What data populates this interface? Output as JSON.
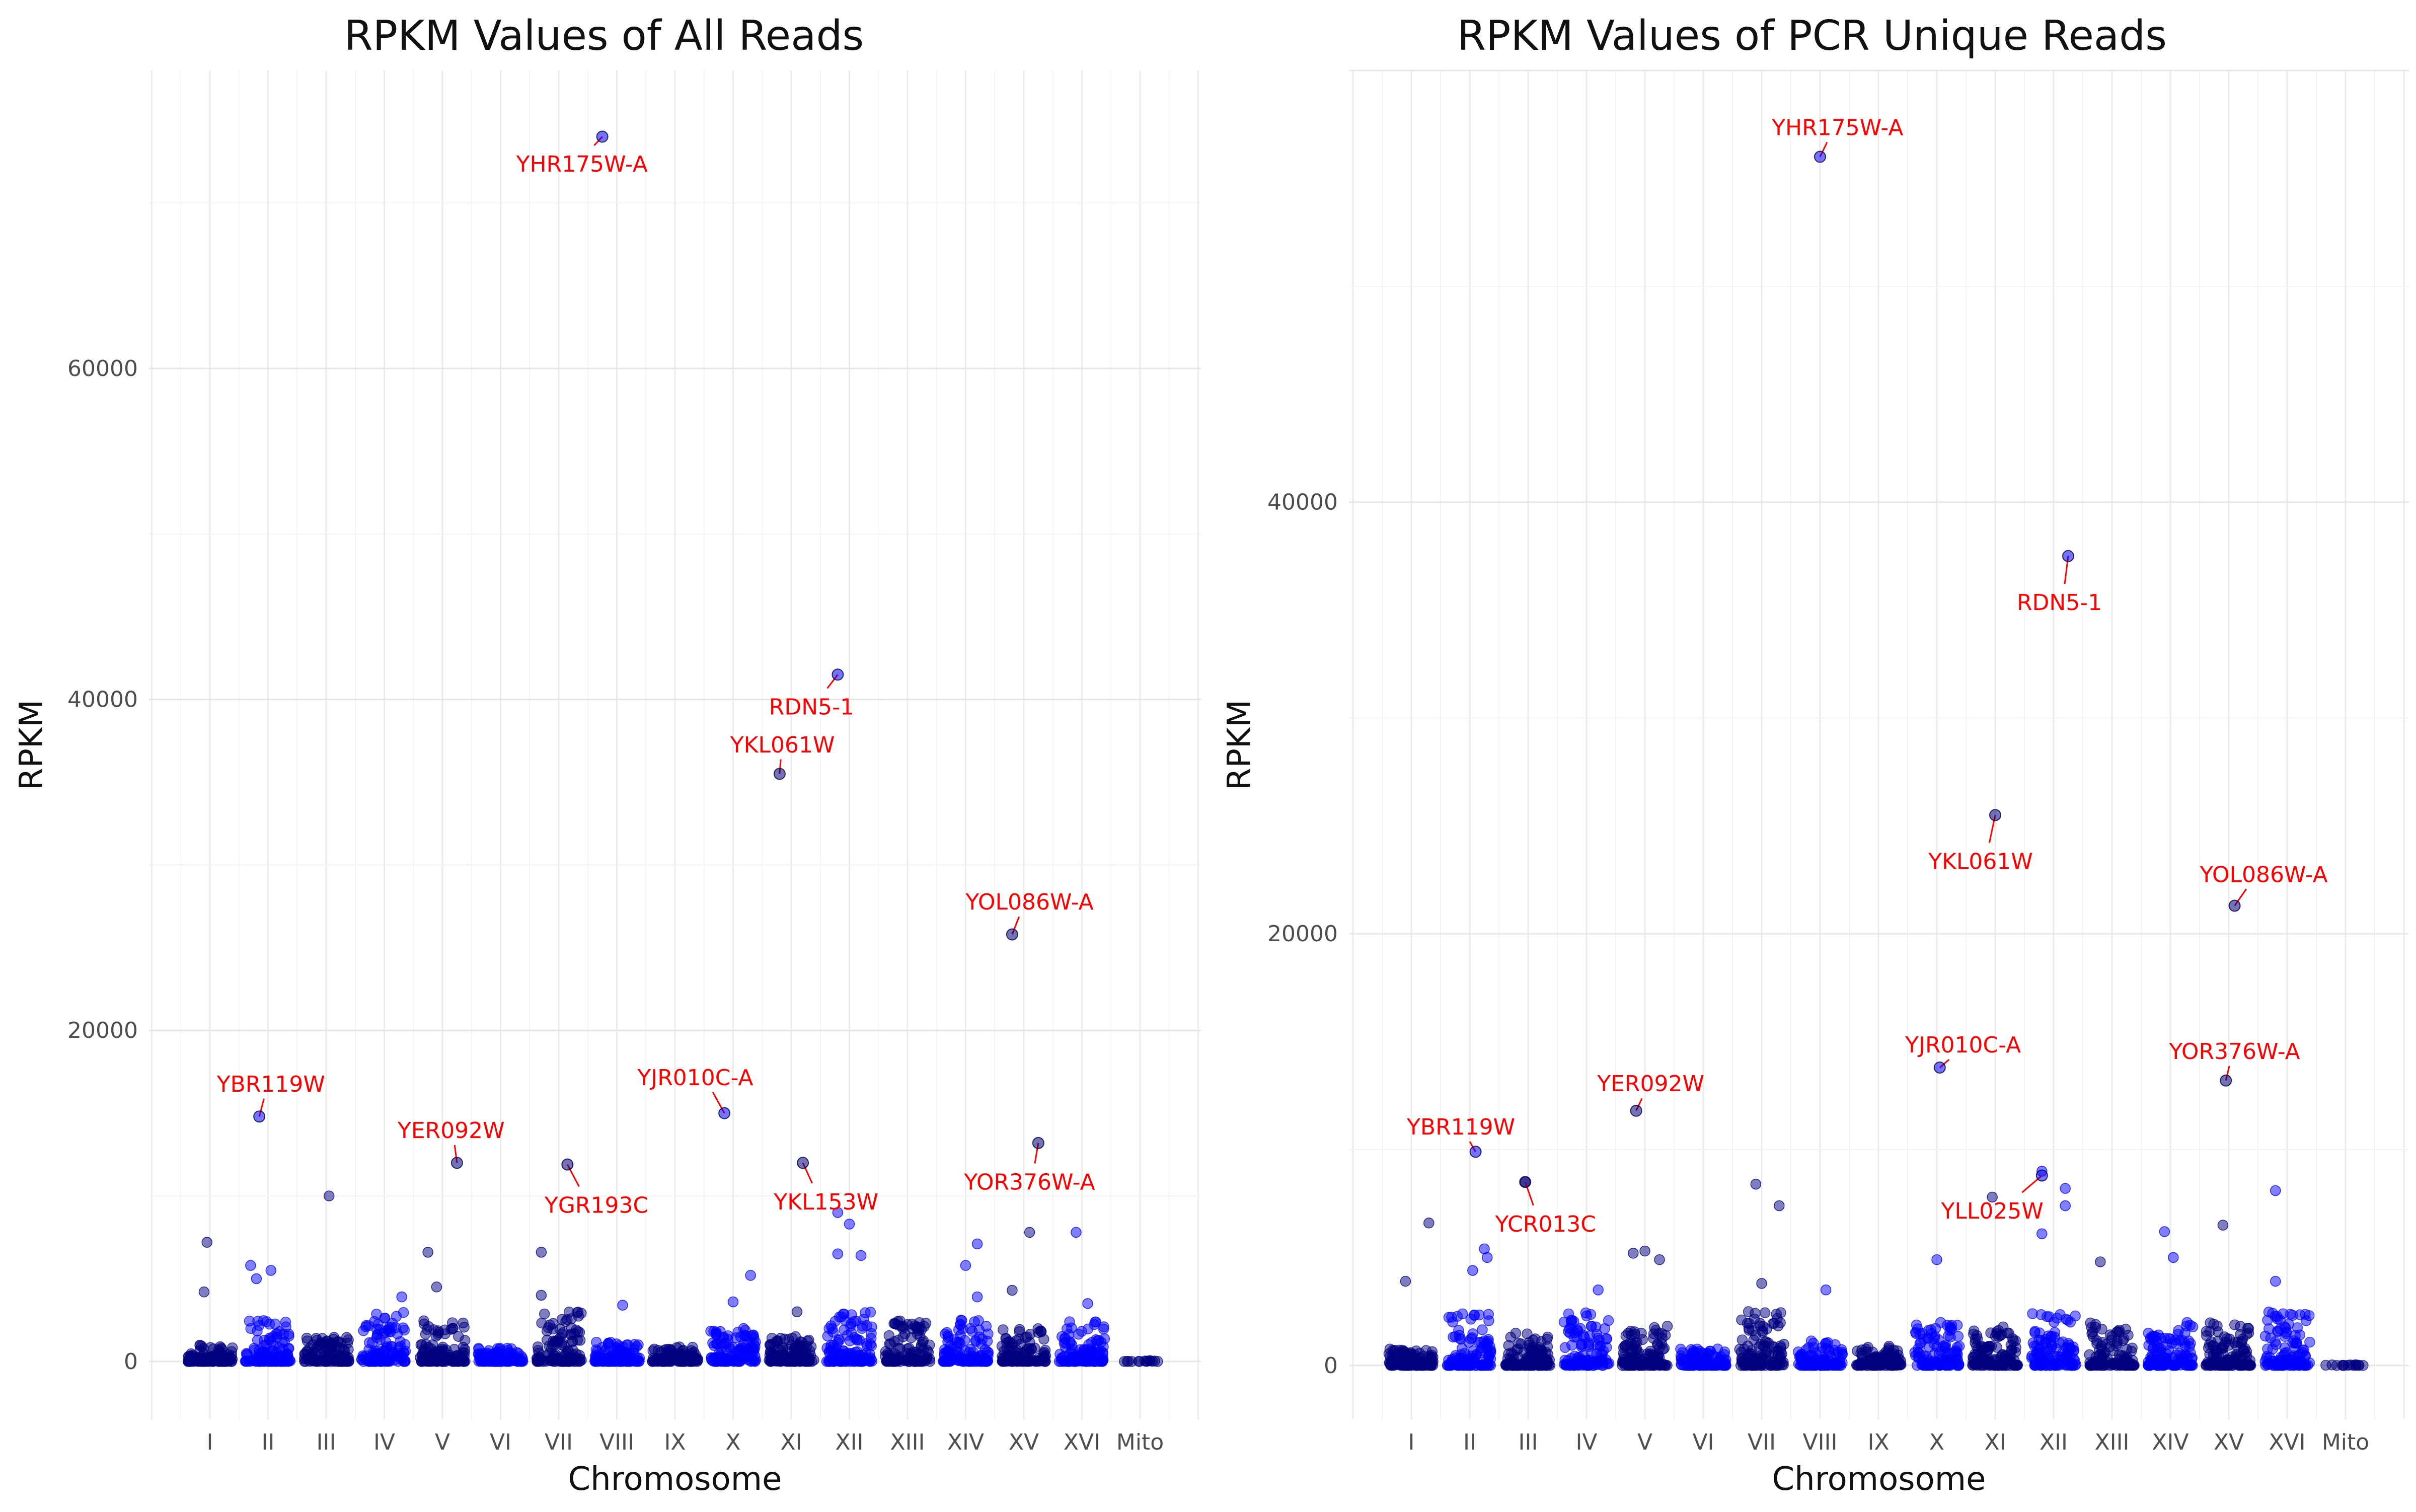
{
  "chart_data": [
    {
      "type": "scatter",
      "title": "RPKM Values of All Reads",
      "xlabel": "Chromosome",
      "ylabel": "RPKM",
      "categories": [
        "I",
        "II",
        "III",
        "IV",
        "V",
        "VI",
        "VII",
        "VIII",
        "IX",
        "X",
        "XI",
        "XII",
        "XIII",
        "XIV",
        "XV",
        "XVI",
        "Mito"
      ],
      "yticks": [
        0,
        20000,
        40000,
        60000
      ],
      "ylim": [
        -3500,
        78000
      ],
      "grid": true,
      "colors": {
        "odd_chromosome": "#000080",
        "even_chromosome": "#0000ff",
        "label": "#ff0000"
      },
      "bulk": [
        {
          "chr": "I",
          "max": 1000
        },
        {
          "chr": "II",
          "max": 2500
        },
        {
          "chr": "III",
          "max": 1500
        },
        {
          "chr": "IV",
          "max": 3000
        },
        {
          "chr": "V",
          "max": 2500
        },
        {
          "chr": "VI",
          "max": 800
        },
        {
          "chr": "VII",
          "max": 3000
        },
        {
          "chr": "VIII",
          "max": 1200
        },
        {
          "chr": "IX",
          "max": 900
        },
        {
          "chr": "X",
          "max": 2000
        },
        {
          "chr": "XI",
          "max": 1500
        },
        {
          "chr": "XII",
          "max": 3000
        },
        {
          "chr": "XIII",
          "max": 2500
        },
        {
          "chr": "XIV",
          "max": 2500
        },
        {
          "chr": "XV",
          "max": 2000
        },
        {
          "chr": "XVI",
          "max": 2500
        },
        {
          "chr": "Mito",
          "max": 50
        }
      ],
      "outliers": [
        {
          "chr": "I",
          "y": 7200,
          "dx": -0.05
        },
        {
          "chr": "I",
          "y": 4200,
          "dx": -0.1
        },
        {
          "chr": "II",
          "y": 5800,
          "dx": -0.3
        },
        {
          "chr": "II",
          "y": 5500,
          "dx": 0.05
        },
        {
          "chr": "II",
          "y": 5000,
          "dx": -0.2
        },
        {
          "chr": "III",
          "y": 10000,
          "dx": 0.05
        },
        {
          "chr": "IV",
          "y": 3900,
          "dx": 0.3
        },
        {
          "chr": "V",
          "y": 6600,
          "dx": -0.25
        },
        {
          "chr": "V",
          "y": 4500,
          "dx": -0.1
        },
        {
          "chr": "VII",
          "y": 6600,
          "dx": -0.3
        },
        {
          "chr": "VII",
          "y": 4000,
          "dx": -0.3
        },
        {
          "chr": "VIII",
          "y": 3400,
          "dx": 0.1
        },
        {
          "chr": "X",
          "y": 5200,
          "dx": 0.3
        },
        {
          "chr": "X",
          "y": 3600,
          "dx": 0
        },
        {
          "chr": "XI",
          "y": 3000,
          "dx": 0.1
        },
        {
          "chr": "XII",
          "y": 9000,
          "dx": -0.2
        },
        {
          "chr": "XII",
          "y": 8300,
          "dx": 0
        },
        {
          "chr": "XII",
          "y": 6500,
          "dx": -0.2
        },
        {
          "chr": "XII",
          "y": 6400,
          "dx": 0.2
        },
        {
          "chr": "XIV",
          "y": 7100,
          "dx": 0.2
        },
        {
          "chr": "XIV",
          "y": 5800,
          "dx": 0
        },
        {
          "chr": "XIV",
          "y": 3900,
          "dx": 0.2
        },
        {
          "chr": "XV",
          "y": 7800,
          "dx": 0.1
        },
        {
          "chr": "XV",
          "y": 4300,
          "dx": -0.2
        },
        {
          "chr": "XVI",
          "y": 7800,
          "dx": -0.1
        },
        {
          "chr": "XVI",
          "y": 3500,
          "dx": 0.1
        }
      ],
      "points": [
        {
          "label": "YHR175W-A",
          "chr": "VIII",
          "dx": -0.25,
          "y": 74000,
          "ly": 72800,
          "ldx": -0.35
        },
        {
          "label": "RDN5-1",
          "chr": "XII",
          "dx": -0.2,
          "y": 41500,
          "ly": 40000,
          "ldx": -0.45
        },
        {
          "label": "YKL061W",
          "chr": "XI",
          "dx": -0.2,
          "y": 35500,
          "ly": 36800,
          "ldx": 0.05
        },
        {
          "label": "YOL086W-A",
          "chr": "XV",
          "dx": -0.2,
          "y": 25800,
          "ly": 27300,
          "ldx": 0.3
        },
        {
          "label": "YBR119W",
          "chr": "II",
          "dx": -0.15,
          "y": 14800,
          "ly": 16300,
          "ldx": 0.2
        },
        {
          "label": "YJR010C-A",
          "chr": "X",
          "dx": -0.15,
          "y": 15000,
          "ly": 16700,
          "ldx": -0.5
        },
        {
          "label": "YER092W",
          "chr": "V",
          "dx": 0.25,
          "y": 12000,
          "ly": 13500,
          "ldx": -0.1
        },
        {
          "label": "YGR193C",
          "chr": "VII",
          "dx": 0.15,
          "y": 11900,
          "ly": 9900,
          "ldx": 0.5
        },
        {
          "label": "YKL153W",
          "chr": "XI",
          "dx": 0.2,
          "y": 12000,
          "ly": 10100,
          "ldx": 0.4
        },
        {
          "label": "YOR376W-A",
          "chr": "XV",
          "dx": 0.25,
          "y": 13200,
          "ly": 11300,
          "ldx": -0.15
        }
      ]
    },
    {
      "type": "scatter",
      "title": "RPKM Values of PCR Unique Reads",
      "xlabel": "Chromosome",
      "ylabel": "RPKM",
      "categories": [
        "I",
        "II",
        "III",
        "IV",
        "V",
        "VI",
        "VII",
        "VIII",
        "IX",
        "X",
        "XI",
        "XII",
        "XIII",
        "XIV",
        "XV",
        "XVI",
        "Mito"
      ],
      "yticks": [
        0,
        20000,
        40000
      ],
      "ylim": [
        -2500,
        60000
      ],
      "grid": true,
      "colors": {
        "odd_chromosome": "#000080",
        "even_chromosome": "#0000ff",
        "label": "#ff0000"
      },
      "bulk": [
        {
          "chr": "I",
          "max": 800
        },
        {
          "chr": "II",
          "max": 2500
        },
        {
          "chr": "III",
          "max": 1500
        },
        {
          "chr": "IV",
          "max": 2500
        },
        {
          "chr": "V",
          "max": 2000
        },
        {
          "chr": "VI",
          "max": 800
        },
        {
          "chr": "VII",
          "max": 2500
        },
        {
          "chr": "VIII",
          "max": 1200
        },
        {
          "chr": "IX",
          "max": 900
        },
        {
          "chr": "X",
          "max": 2000
        },
        {
          "chr": "XI",
          "max": 1800
        },
        {
          "chr": "XII",
          "max": 2500
        },
        {
          "chr": "XIII",
          "max": 2000
        },
        {
          "chr": "XIV",
          "max": 2000
        },
        {
          "chr": "XV",
          "max": 2000
        },
        {
          "chr": "XVI",
          "max": 2500
        },
        {
          "chr": "Mito",
          "max": 40
        }
      ],
      "outliers": [
        {
          "chr": "I",
          "y": 6600,
          "dx": 0.3
        },
        {
          "chr": "I",
          "y": 3900,
          "dx": -0.1
        },
        {
          "chr": "II",
          "y": 5400,
          "dx": 0.25
        },
        {
          "chr": "II",
          "y": 5000,
          "dx": 0.3
        },
        {
          "chr": "II",
          "y": 4400,
          "dx": 0.05
        },
        {
          "chr": "III",
          "y": 8500,
          "dx": -0.05
        },
        {
          "chr": "IV",
          "y": 3500,
          "dx": 0.2
        },
        {
          "chr": "V",
          "y": 5300,
          "dx": 0
        },
        {
          "chr": "V",
          "y": 5200,
          "dx": -0.2
        },
        {
          "chr": "V",
          "y": 4900,
          "dx": 0.25
        },
        {
          "chr": "VII",
          "y": 8400,
          "dx": -0.1
        },
        {
          "chr": "VII",
          "y": 7400,
          "dx": 0.3
        },
        {
          "chr": "VII",
          "y": 3800,
          "dx": 0
        },
        {
          "chr": "VIII",
          "y": 3500,
          "dx": 0.1
        },
        {
          "chr": "X",
          "y": 4900,
          "dx": 0
        },
        {
          "chr": "XI",
          "y": 7800,
          "dx": -0.05
        },
        {
          "chr": "XII",
          "y": 9000,
          "dx": -0.2
        },
        {
          "chr": "XII",
          "y": 8200,
          "dx": 0.2
        },
        {
          "chr": "XII",
          "y": 7400,
          "dx": 0.2
        },
        {
          "chr": "XII",
          "y": 6100,
          "dx": -0.2
        },
        {
          "chr": "XIII",
          "y": 4800,
          "dx": -0.2
        },
        {
          "chr": "XIV",
          "y": 6200,
          "dx": -0.1
        },
        {
          "chr": "XIV",
          "y": 5000,
          "dx": 0.05
        },
        {
          "chr": "XV",
          "y": 6500,
          "dx": -0.1
        },
        {
          "chr": "XVI",
          "y": 8100,
          "dx": -0.2
        },
        {
          "chr": "XVI",
          "y": 3900,
          "dx": -0.2
        }
      ],
      "points": [
        {
          "label": "YHR175W-A",
          "chr": "VIII",
          "dx": 0,
          "y": 56000,
          "ly": 57000,
          "ldx": 0.3
        },
        {
          "label": "RDN5-1",
          "chr": "XII",
          "dx": 0.25,
          "y": 37500,
          "ly": 35700,
          "ldx": -0.15
        },
        {
          "label": "YKL061W",
          "chr": "XI",
          "dx": 0,
          "y": 25500,
          "ly": 23700,
          "ldx": -0.25
        },
        {
          "label": "YOL086W-A",
          "chr": "XV",
          "dx": 0.1,
          "y": 21300,
          "ly": 22400,
          "ldx": 0.5
        },
        {
          "label": "YJR010C-A",
          "chr": "X",
          "dx": 0.05,
          "y": 13800,
          "ly": 14500,
          "ldx": 0.4
        },
        {
          "label": "YOR376W-A",
          "chr": "XV",
          "dx": -0.05,
          "y": 13200,
          "ly": 14200,
          "ldx": 0.15
        },
        {
          "label": "YER092W",
          "chr": "V",
          "dx": -0.15,
          "y": 11800,
          "ly": 12700,
          "ldx": 0.25
        },
        {
          "label": "YBR119W",
          "chr": "II",
          "dx": 0.1,
          "y": 9900,
          "ly": 10700,
          "ldx": -0.25
        },
        {
          "label": "YCR013C",
          "chr": "III",
          "dx": -0.05,
          "y": 8500,
          "ly": 6900,
          "ldx": 0.35
        },
        {
          "label": "YLL025W",
          "chr": "XII",
          "dx": -0.2,
          "y": 8800,
          "ly": 7500,
          "ldx": -0.85
        }
      ]
    }
  ]
}
